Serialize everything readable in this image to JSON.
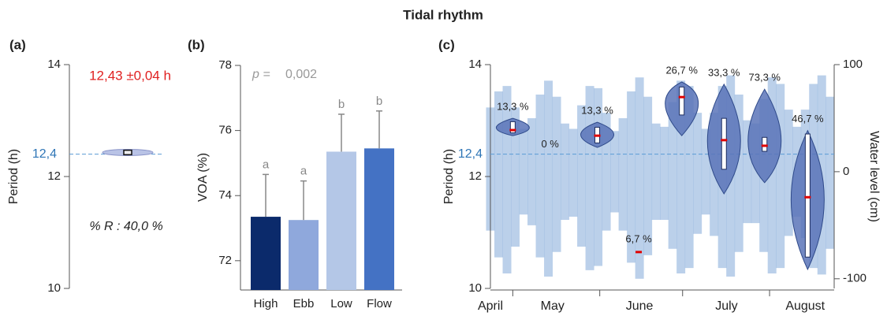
{
  "title": "Tidal rhythm",
  "chart_data": [
    {
      "type": "box",
      "panel": "(a)",
      "y_label": "Period (h)",
      "ylim": [
        10,
        14
      ],
      "yticks": [
        10,
        12,
        14
      ],
      "reference": {
        "value": 12.4,
        "label": "12,4"
      },
      "values": [
        12.43
      ],
      "errors": [
        0.04
      ],
      "value_labels": [
        "12,43 ±0,04 h"
      ],
      "annotation": "% R : 40,0 %",
      "color": "#b9c3e6"
    },
    {
      "type": "bar",
      "panel": "(b)",
      "y_label": "VOA (%)",
      "categories": [
        "High",
        "Ebb",
        "Low",
        "Flow"
      ],
      "values": [
        73.35,
        73.25,
        75.35,
        75.45
      ],
      "errors": [
        1.3,
        1.2,
        1.15,
        1.15
      ],
      "colors": [
        "#0b2a6b",
        "#8fa8dc",
        "#b4c7e7",
        "#4472c4"
      ],
      "group_labels": [
        "a",
        "a",
        "b",
        "b"
      ],
      "stat_label": "p =",
      "stat_value": "0,002",
      "ylim": [
        71.1,
        78
      ],
      "yticks": [
        72,
        74,
        76,
        78
      ]
    },
    {
      "type": "violin",
      "panel": "(c)",
      "y_label": "Period (h)",
      "y2_label": "Water level (cm)",
      "ylim": [
        10,
        14
      ],
      "yticks": [
        10,
        12,
        14
      ],
      "y2lim": [
        -109,
        100
      ],
      "y2ticks": [
        -100,
        0,
        100
      ],
      "reference": {
        "value": 12.4,
        "label": "12,4"
      },
      "xlim": [
        0,
        4.15
      ],
      "xticks": [
        {
          "value": 0,
          "label": "April"
        },
        {
          "value": 0.75,
          "label": "May"
        },
        {
          "value": 1.8,
          "label": "June"
        },
        {
          "value": 2.85,
          "label": "July"
        },
        {
          "value": 3.8,
          "label": "August"
        }
      ],
      "xminor": [
        0.27,
        1.32,
        2.32,
        3.37
      ],
      "violin_color": "#5b74b9",
      "mean_color": "#e00000",
      "violins": [
        {
          "x": 0.27,
          "label": "13,3 %",
          "min": 12.73,
          "q1": 12.78,
          "median": 12.86,
          "q3": 12.98,
          "max": 13.04,
          "mean": 12.83
        },
        {
          "x": 0.72,
          "label": "0 %"
        },
        {
          "x": 1.29,
          "label": "13,3 %",
          "min": 12.52,
          "q1": 12.6,
          "median": 12.75,
          "q3": 12.88,
          "max": 12.97,
          "mean": 12.73
        },
        {
          "x": 1.79,
          "label": "6,7 %",
          "min": 10.65,
          "max": 10.65,
          "mean": 10.65
        },
        {
          "x": 2.31,
          "label": "26,7 %",
          "min": 12.73,
          "q1": 13.1,
          "median": 13.4,
          "q3": 13.6,
          "max": 13.69,
          "mean": 13.42
        },
        {
          "x": 2.82,
          "label": "33,3 %",
          "min": 11.69,
          "q1": 12.13,
          "median": 12.6,
          "q3": 13.04,
          "max": 13.65,
          "mean": 12.65
        },
        {
          "x": 3.31,
          "label": "73,3 %",
          "min": 11.89,
          "q1": 12.45,
          "median": 12.55,
          "q3": 12.7,
          "max": 13.56,
          "mean": 12.55
        },
        {
          "x": 3.83,
          "label": "46,7 %",
          "min": 10.34,
          "q1": 10.56,
          "median": 11.6,
          "q3": 12.76,
          "max": 12.82,
          "mean": 11.63
        }
      ],
      "water_level": {
        "axis": "y2",
        "color": "#8fb2dd",
        "x": [
          0,
          0.1,
          0.2,
          0.3,
          0.4,
          0.5,
          0.6,
          0.7,
          0.8,
          0.9,
          1,
          1.1,
          1.2,
          1.3,
          1.4,
          1.5,
          1.6,
          1.7,
          1.8,
          1.9,
          2,
          2.1,
          2.2,
          2.3,
          2.4,
          2.5,
          2.6,
          2.7,
          2.8,
          2.9,
          3,
          3.1,
          3.2,
          3.3,
          3.4,
          3.5,
          3.6,
          3.7,
          3.8,
          3.9,
          4,
          4.1
        ],
        "high": [
          60,
          75,
          80,
          60,
          40,
          50,
          72,
          85,
          70,
          45,
          40,
          62,
          80,
          78,
          55,
          38,
          50,
          75,
          88,
          70,
          45,
          42,
          65,
          85,
          80,
          55,
          40,
          55,
          80,
          90,
          72,
          48,
          45,
          68,
          88,
          82,
          58,
          42,
          58,
          82,
          90,
          70
        ],
        "low": [
          -55,
          -80,
          -95,
          -70,
          -40,
          -50,
          -80,
          -98,
          -75,
          -45,
          -42,
          -70,
          -92,
          -88,
          -55,
          -38,
          -55,
          -85,
          -100,
          -78,
          -45,
          -45,
          -72,
          -95,
          -90,
          -58,
          -40,
          -60,
          -90,
          -98,
          -75,
          -48,
          -48,
          -75,
          -95,
          -90,
          -60,
          -42,
          -62,
          -90,
          -96,
          -72
        ]
      }
    }
  ]
}
